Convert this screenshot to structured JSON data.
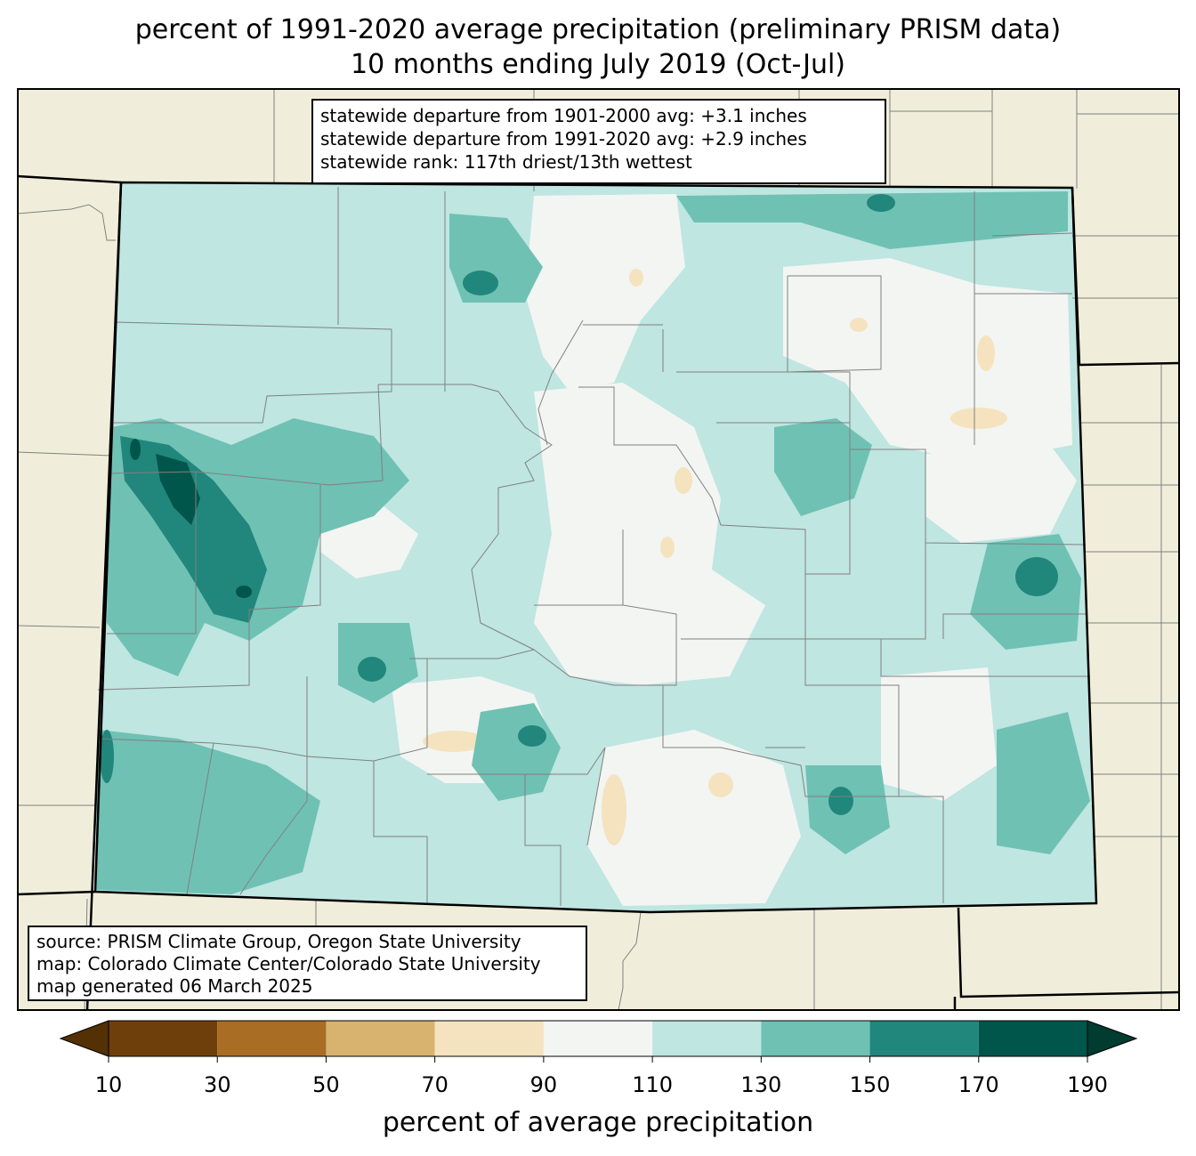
{
  "title": {
    "line1": "percent of 1991-2020 average precipitation (preliminary PRISM data)",
    "line2": "10 months ending July 2019 (Oct-Jul)"
  },
  "stats": {
    "line1": "statewide departure from 1901-2000 avg: +3.1 inches",
    "line2": "statewide departure from 1991-2020 avg: +2.9 inches",
    "line3": "statewide rank: 117th driest/13th wettest"
  },
  "source": {
    "line1": "source: PRISM Climate Group, Oregon State University",
    "line2": "map: Colorado Climate Center/Colorado State University",
    "line3": "map generated 06 March 2025"
  },
  "colorbar": {
    "label": "percent of average precipitation",
    "ticks": [
      "10",
      "30",
      "50",
      "70",
      "90",
      "110",
      "130",
      "150",
      "170",
      "190"
    ],
    "under_color": "#543005",
    "over_color": "#003c30",
    "bins": [
      {
        "from": 10,
        "to": 30,
        "color": "#6f3f0b"
      },
      {
        "from": 30,
        "to": 50,
        "color": "#a96d24"
      },
      {
        "from": 50,
        "to": 70,
        "color": "#d8b36f"
      },
      {
        "from": 70,
        "to": 90,
        "color": "#f4e3be"
      },
      {
        "from": 90,
        "to": 110,
        "color": "#f3f5f3"
      },
      {
        "from": 110,
        "to": 130,
        "color": "#bfe6e1"
      },
      {
        "from": 130,
        "to": 150,
        "color": "#6fc1b4"
      },
      {
        "from": 150,
        "to": 170,
        "color": "#21867c"
      },
      {
        "from": 170,
        "to": 190,
        "color": "#01564b"
      }
    ]
  },
  "colors": {
    "land_background": "#f0eedb",
    "state_border": "#000000",
    "county_border": "#808080"
  }
}
